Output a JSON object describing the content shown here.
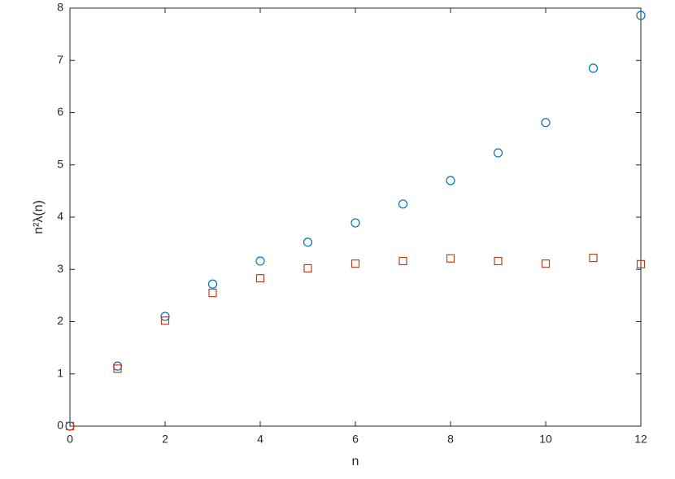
{
  "chart_data": {
    "type": "scatter",
    "x_label": "n",
    "y_label": "n²λ(n)",
    "x": [
      0,
      1,
      2,
      3,
      4,
      5,
      6,
      7,
      8,
      9,
      10,
      11,
      12
    ],
    "series": [
      {
        "color": "#0072bd",
        "marker": "circle",
        "values": [
          0,
          1.15,
          2.1,
          2.72,
          3.16,
          3.52,
          3.89,
          4.25,
          4.7,
          5.23,
          5.81,
          6.85,
          7.86
        ]
      },
      {
        "color": "#b4441f",
        "marker": "square",
        "values": [
          0,
          1.1,
          2.02,
          2.55,
          2.83,
          3.02,
          3.11,
          3.16,
          3.21,
          3.16,
          3.11,
          3.22,
          3.1
        ]
      }
    ],
    "xlim": [
      0,
      12
    ],
    "ylim": [
      0,
      8
    ],
    "xticks": [
      0,
      2,
      4,
      6,
      8,
      10,
      12
    ],
    "yticks": [
      0,
      1,
      2,
      3,
      4,
      5,
      6,
      7,
      8
    ]
  }
}
